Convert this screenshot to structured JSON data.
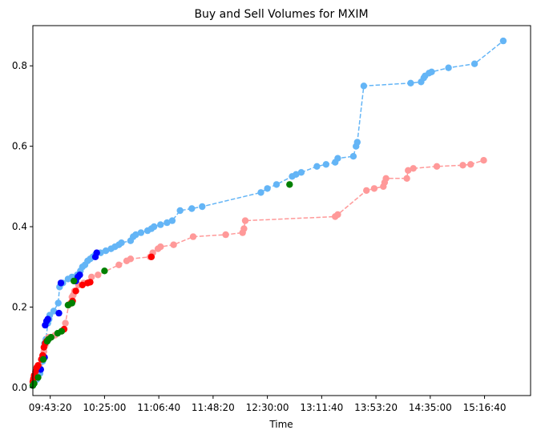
{
  "chart_data": {
    "type": "scatter",
    "title": "Buy and Sell Volumes for MXIM",
    "xlabel": "Time",
    "ylabel": "",
    "x_ticks": [
      "09:43:20",
      "10:25:00",
      "11:06:40",
      "11:48:20",
      "12:30:00",
      "13:11:40",
      "13:53:20",
      "14:35:00",
      "15:16:40"
    ],
    "y_ticks": [
      "0.0",
      "0.2",
      "0.4",
      "0.6",
      "0.8"
    ],
    "xlim": [
      "09:30:00",
      "15:52:00"
    ],
    "ylim": [
      -0.02,
      0.9
    ],
    "grid": false,
    "legend": "none",
    "colors": {
      "buy": "#64b5f6",
      "sell": "#ff9999",
      "blue_marker": "#0000ff",
      "red_marker": "#ff0000",
      "green_marker": "#008000"
    },
    "series": [
      {
        "line_color": "#64b5f6",
        "line_style": "dashed",
        "points": [
          [
            "09:30:00",
            0.005
          ],
          [
            "09:31:00",
            0.01
          ],
          [
            "09:33:00",
            0.02
          ],
          [
            "09:35:30",
            0.035
          ],
          [
            "09:37:30",
            0.065
          ],
          [
            "09:38:30",
            0.09
          ],
          [
            "09:39:00",
            0.11
          ],
          [
            "09:40:00",
            0.12
          ],
          [
            "09:41:30",
            0.16
          ],
          [
            "09:42:30",
            0.17
          ],
          [
            "09:43:00",
            0.18
          ],
          [
            "09:46:00",
            0.19
          ],
          [
            "09:49:30",
            0.21
          ],
          [
            "09:50:30",
            0.25
          ],
          [
            "09:53:00",
            0.26
          ],
          [
            "09:57:00",
            0.27
          ],
          [
            "10:00:00",
            0.275
          ],
          [
            "10:04:00",
            0.28
          ],
          [
            "10:06:30",
            0.29
          ],
          [
            "10:08:00",
            0.3
          ],
          [
            "10:10:00",
            0.305
          ],
          [
            "10:12:00",
            0.315
          ],
          [
            "10:14:00",
            0.32
          ],
          [
            "10:16:00",
            0.325
          ],
          [
            "10:18:00",
            0.33
          ],
          [
            "10:22:00",
            0.335
          ],
          [
            "10:26:00",
            0.34
          ],
          [
            "10:30:00",
            0.345
          ],
          [
            "10:33:00",
            0.35
          ],
          [
            "10:36:00",
            0.355
          ],
          [
            "10:38:00",
            0.36
          ],
          [
            "10:45:00",
            0.365
          ],
          [
            "10:47:00",
            0.375
          ],
          [
            "10:49:00",
            0.38
          ],
          [
            "10:53:00",
            0.385
          ],
          [
            "10:58:00",
            0.39
          ],
          [
            "11:01:00",
            0.395
          ],
          [
            "11:03:00",
            0.4
          ],
          [
            "11:08:00",
            0.405
          ],
          [
            "11:13:00",
            0.41
          ],
          [
            "11:17:00",
            0.415
          ],
          [
            "11:23:00",
            0.44
          ],
          [
            "11:32:00",
            0.445
          ],
          [
            "11:40:00",
            0.45
          ],
          [
            "12:25:00",
            0.485
          ],
          [
            "12:30:00",
            0.495
          ],
          [
            "12:37:00",
            0.505
          ],
          [
            "12:49:00",
            0.525
          ],
          [
            "12:52:00",
            0.53
          ],
          [
            "12:56:00",
            0.535
          ],
          [
            "13:08:00",
            0.55
          ],
          [
            "13:15:00",
            0.555
          ],
          [
            "13:22:00",
            0.56
          ],
          [
            "13:24:00",
            0.57
          ],
          [
            "13:36:00",
            0.575
          ],
          [
            "13:38:00",
            0.6
          ],
          [
            "13:39:00",
            0.61
          ],
          [
            "13:44:00",
            0.75
          ],
          [
            "14:20:00",
            0.757
          ],
          [
            "14:28:00",
            0.76
          ],
          [
            "14:30:00",
            0.77
          ],
          [
            "14:31:00",
            0.775
          ],
          [
            "14:34:00",
            0.782
          ],
          [
            "14:36:00",
            0.785
          ],
          [
            "14:49:00",
            0.795
          ],
          [
            "15:09:00",
            0.805
          ],
          [
            "15:31:00",
            0.862
          ]
        ]
      },
      {
        "line_color": "#ff9999",
        "line_style": "dashed",
        "points": [
          [
            "09:30:00",
            0.012
          ],
          [
            "09:30:30",
            0.02
          ],
          [
            "09:31:30",
            0.03
          ],
          [
            "09:32:30",
            0.045
          ],
          [
            "09:33:30",
            0.05
          ],
          [
            "09:34:30",
            0.055
          ],
          [
            "09:37:00",
            0.07
          ],
          [
            "09:38:00",
            0.08
          ],
          [
            "09:38:30",
            0.09
          ],
          [
            "09:39:30",
            0.105
          ],
          [
            "09:40:30",
            0.115
          ],
          [
            "09:42:00",
            0.125
          ],
          [
            "09:44:00",
            0.125
          ],
          [
            "09:47:00",
            0.13
          ],
          [
            "09:52:00",
            0.14
          ],
          [
            "09:55:00",
            0.16
          ],
          [
            "09:57:30",
            0.205
          ],
          [
            "09:59:00",
            0.21
          ],
          [
            "10:00:00",
            0.225
          ],
          [
            "10:01:00",
            0.23
          ],
          [
            "10:02:00",
            0.24
          ],
          [
            "10:05:00",
            0.255
          ],
          [
            "10:09:00",
            0.26
          ],
          [
            "10:15:00",
            0.275
          ],
          [
            "10:20:00",
            0.28
          ],
          [
            "10:36:00",
            0.305
          ],
          [
            "10:42:00",
            0.315
          ],
          [
            "10:45:00",
            0.32
          ],
          [
            "11:00:00",
            0.325
          ],
          [
            "11:02:00",
            0.335
          ],
          [
            "11:06:00",
            0.345
          ],
          [
            "11:08:00",
            0.35
          ],
          [
            "11:18:00",
            0.355
          ],
          [
            "11:33:00",
            0.375
          ],
          [
            "11:58:00",
            0.38
          ],
          [
            "12:11:00",
            0.385
          ],
          [
            "12:12:00",
            0.395
          ],
          [
            "12:13:00",
            0.415
          ],
          [
            "13:22:00",
            0.425
          ],
          [
            "13:24:00",
            0.43
          ],
          [
            "13:46:00",
            0.49
          ],
          [
            "13:52:00",
            0.495
          ],
          [
            "13:59:00",
            0.5
          ],
          [
            "14:00:00",
            0.51
          ],
          [
            "14:01:00",
            0.52
          ],
          [
            "14:17:00",
            0.52
          ],
          [
            "14:18:00",
            0.54
          ],
          [
            "14:22:00",
            0.545
          ],
          [
            "14:40:00",
            0.55
          ],
          [
            "15:00:00",
            0.553
          ],
          [
            "15:06:00",
            0.555
          ],
          [
            "15:16:00",
            0.565
          ]
        ]
      },
      {
        "marker_color": "#0000ff",
        "line_style": "none",
        "points": [
          [
            "09:36:00",
            0.045
          ],
          [
            "09:39:00",
            0.075
          ],
          [
            "09:39:30",
            0.155
          ],
          [
            "09:40:30",
            0.165
          ],
          [
            "09:41:30",
            0.17
          ],
          [
            "09:50:00",
            0.185
          ],
          [
            "09:51:30",
            0.26
          ],
          [
            "10:03:00",
            0.265
          ],
          [
            "10:04:30",
            0.275
          ],
          [
            "10:06:00",
            0.28
          ],
          [
            "10:18:00",
            0.325
          ],
          [
            "10:19:00",
            0.335
          ]
        ]
      },
      {
        "marker_color": "#ff0000",
        "line_style": "none",
        "points": [
          [
            "09:30:00",
            0.015
          ],
          [
            "09:30:30",
            0.022
          ],
          [
            "09:31:00",
            0.03
          ],
          [
            "09:32:00",
            0.04
          ],
          [
            "09:33:00",
            0.05
          ],
          [
            "09:34:00",
            0.055
          ],
          [
            "09:36:30",
            0.07
          ],
          [
            "09:37:30",
            0.08
          ],
          [
            "09:38:30",
            0.1
          ],
          [
            "09:39:30",
            0.11
          ],
          [
            "09:40:30",
            0.115
          ],
          [
            "09:54:00",
            0.145
          ],
          [
            "09:59:30",
            0.21
          ],
          [
            "10:00:30",
            0.215
          ],
          [
            "10:03:00",
            0.24
          ],
          [
            "10:08:00",
            0.255
          ],
          [
            "10:12:00",
            0.26
          ],
          [
            "10:14:00",
            0.262
          ],
          [
            "11:01:00",
            0.325
          ]
        ]
      },
      {
        "marker_color": "#008000",
        "line_style": "none",
        "points": [
          [
            "09:30:00",
            0.005
          ],
          [
            "09:31:00",
            0.01
          ],
          [
            "09:34:00",
            0.025
          ],
          [
            "09:38:00",
            0.07
          ],
          [
            "09:41:00",
            0.115
          ],
          [
            "09:42:00",
            0.12
          ],
          [
            "09:44:00",
            0.125
          ],
          [
            "09:49:00",
            0.135
          ],
          [
            "09:52:00",
            0.14
          ],
          [
            "09:57:00",
            0.205
          ],
          [
            "10:00:00",
            0.21
          ],
          [
            "10:01:30",
            0.265
          ],
          [
            "10:25:00",
            0.29
          ],
          [
            "12:47:00",
            0.505
          ]
        ]
      }
    ]
  }
}
